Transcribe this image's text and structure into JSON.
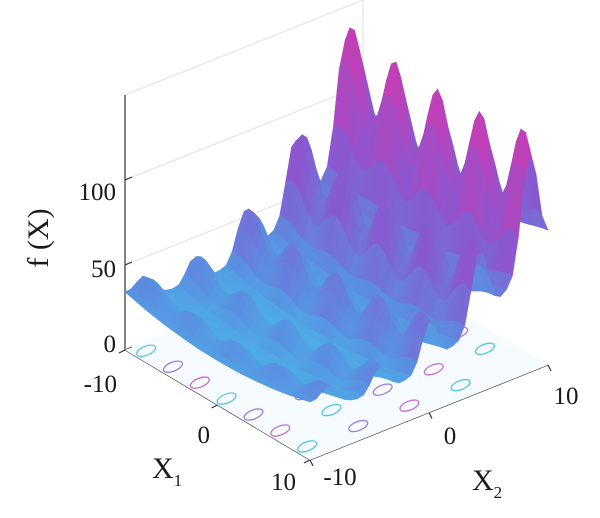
{
  "chart_data": {
    "type": "surface",
    "function": "3D surface plot with contour projection on the base plane",
    "xlabel": "X",
    "xlabel_sub": "1",
    "ylabel": "X",
    "ylabel_sub": "2",
    "zlabel": "f (X)",
    "x_ticks": [
      "-10",
      "0",
      "10"
    ],
    "y_ticks": [
      "-10",
      "0",
      "10"
    ],
    "z_ticks": [
      "0",
      "50",
      "100"
    ],
    "xlim": [
      -10,
      10
    ],
    "ylim": [
      -10,
      10
    ],
    "zlim": [
      0,
      150
    ],
    "colormap": [
      "#3fd0ee",
      "#5a8ee0",
      "#8a58d0",
      "#c040b8"
    ],
    "contour_colors": [
      "#4fc8e8",
      "#9a7fe0",
      "#c86ad0"
    ],
    "grid": true
  }
}
